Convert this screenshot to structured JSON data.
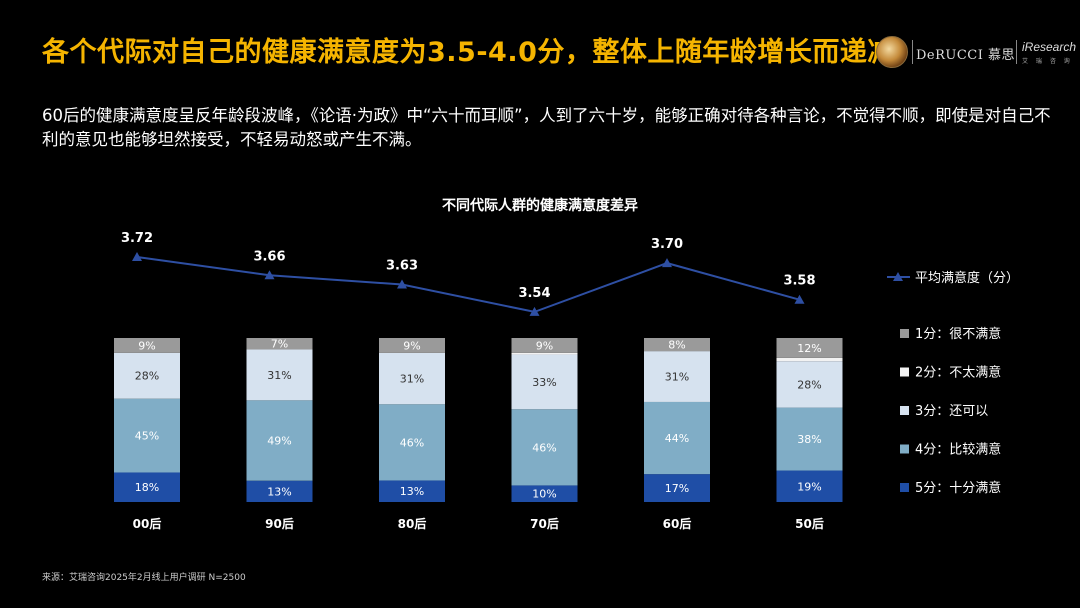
{
  "header": {
    "title": "各个代际对自己的健康满意度为3.5-4.0分，整体上随年龄增长而递减",
    "logo_derucci": "DeRUCCI 慕思",
    "logo_iresearch": "iResearch",
    "logo_iresearch_sub": "艾 瑞 咨 询"
  },
  "body": {
    "paragraph": "60后的健康满意度呈反年龄段波峰，《论语·为政》中“六十而耳顺”，人到了六十岁，能够正确对待各种言论，不觉得不顺，即使是对自己不利的意见也能够坦然接受，不轻易动怒或产生不满。"
  },
  "footer": {
    "source": "来源：艾瑞咨询2025年2月线上用户调研 N=2500"
  },
  "colors": {
    "title": "#f5b400",
    "line": "#2e4fa3"
  },
  "chart_data": {
    "type": "bar",
    "stacked": true,
    "title": "不同代际人群的健康满意度差异",
    "categories": [
      "00后",
      "90后",
      "80后",
      "70后",
      "60后",
      "50后"
    ],
    "series": [
      {
        "name": "5分：十分满意",
        "values": [
          18,
          13,
          13,
          10,
          17,
          19
        ],
        "color": "#1f4ea6"
      },
      {
        "name": "4分：比较满意",
        "values": [
          45,
          49,
          46,
          46,
          44,
          38
        ],
        "color": "#80adc6"
      },
      {
        "name": "3分：还可以",
        "values": [
          28,
          31,
          31,
          33,
          31,
          28
        ],
        "color": "#d6e2ef"
      },
      {
        "name": "2分：不太满意",
        "values": [
          0,
          0,
          0,
          1,
          0,
          2
        ],
        "color": "#f2f2f2"
      },
      {
        "name": "1分：很不满意",
        "values": [
          9,
          7,
          9,
          9,
          8,
          12
        ],
        "color": "#9a9a9a"
      }
    ],
    "line_series": {
      "name": "平均满意度（分）",
      "values": [
        3.72,
        3.66,
        3.63,
        3.54,
        3.7,
        3.58
      ],
      "labels": [
        "3.72",
        "3.66",
        "3.63",
        "3.54",
        "3.70",
        "3.58"
      ],
      "color": "#2e4fa3"
    },
    "ylim": [
      0,
      100
    ],
    "legend": "right",
    "grid": false
  }
}
